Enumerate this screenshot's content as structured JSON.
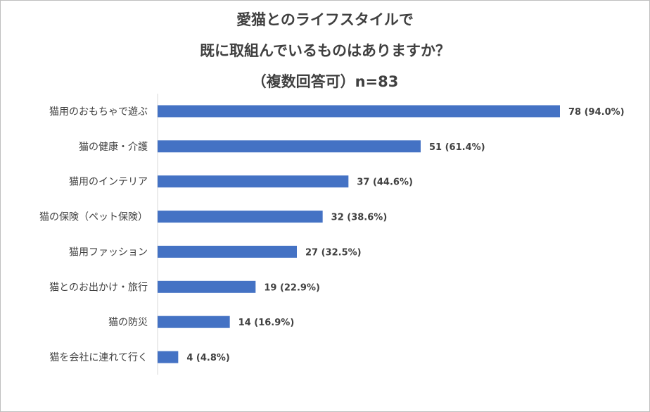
{
  "chart_data": {
    "type": "bar",
    "orientation": "horizontal",
    "title_lines": [
      "愛猫とのライフスタイルで",
      "既に取組んでいるものはありますか？",
      "（複数回答可）n=83"
    ],
    "categories": [
      "猫用のおもちゃで遊ぶ",
      "猫の健康・介護",
      "猫用のインテリア",
      "猫の保険（ペット保険）",
      "猫用ファッション",
      "猫とのお出かけ・旅行",
      "猫の防災",
      "猫を会社に連れて行く"
    ],
    "values": [
      78,
      51,
      37,
      32,
      27,
      19,
      14,
      4
    ],
    "value_labels": [
      "78 (94.0%)",
      "51 (61.4%)",
      "37 (44.6%)",
      "32 (38.6%)",
      "27 (32.5%)",
      "19 (22.9%)",
      "14 (16.9%)",
      "4 (4.8%)"
    ],
    "xlim": [
      0,
      83
    ],
    "bar_color": "#4472c4",
    "grid": false,
    "legend": "none"
  }
}
